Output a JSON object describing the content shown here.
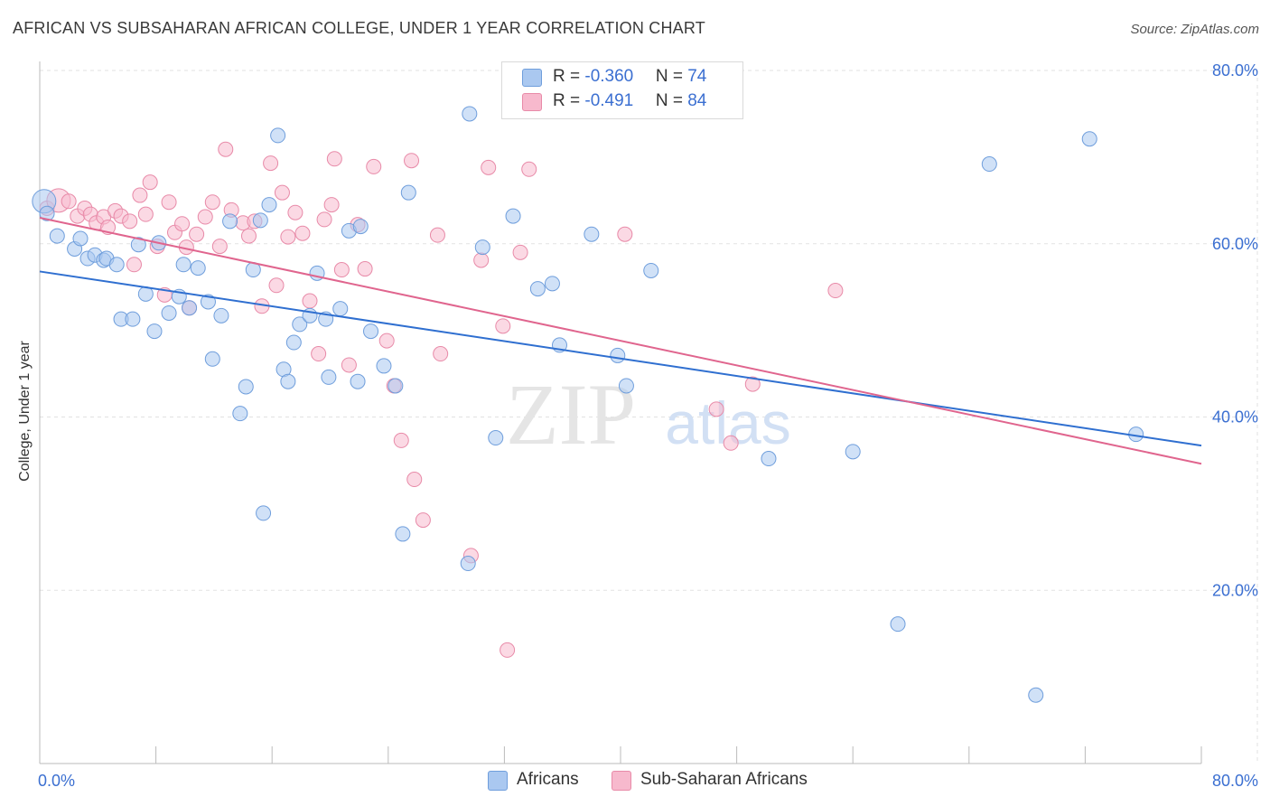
{
  "title": "AFRICAN VS SUBSAHARAN AFRICAN COLLEGE, UNDER 1 YEAR CORRELATION CHART",
  "source": "Source: ZipAtlas.com",
  "watermark": "ZIPatlas",
  "colors": {
    "africans_fill": "#aac8f0",
    "africans_stroke": "#6f9edc",
    "africans_line": "#2f6fd0",
    "subsaharan_fill": "#f7b9cd",
    "subsaharan_stroke": "#e88aa8",
    "subsaharan_line": "#e0658e",
    "value_text": "#3b6fd1",
    "grid": "#e2e2e2"
  },
  "legend": {
    "row1": {
      "r_label": "R = ",
      "r_value": "-0.360",
      "n_label": "N = ",
      "n_value": "74"
    },
    "row2": {
      "r_label": "R = ",
      "r_value": "-0.491",
      "n_label": "N = ",
      "n_value": "84"
    }
  },
  "chart_data": {
    "type": "scatter",
    "title": "AFRICAN VS SUBSAHARAN AFRICAN COLLEGE, UNDER 1 YEAR CORRELATION CHART",
    "xlabel": "",
    "ylabel": "College, Under 1 year",
    "xlim": [
      0,
      80
    ],
    "ylim": [
      0,
      80
    ],
    "x_tick_labels": [
      "0.0%",
      "80.0%"
    ],
    "y_tick_labels": [
      "20.0%",
      "40.0%",
      "60.0%",
      "80.0%"
    ],
    "y_ticks": [
      20,
      40,
      60,
      80
    ],
    "grid": true,
    "legend_position": "top-center",
    "series": [
      {
        "name": "Africans",
        "r": -0.36,
        "n": 74,
        "trend": {
          "x": [
            0,
            80
          ],
          "y": [
            56.8,
            36.7
          ]
        },
        "points": [
          [
            0.3,
            64.9
          ],
          [
            0.5,
            63.5
          ],
          [
            1.2,
            60.9
          ],
          [
            2.4,
            59.4
          ],
          [
            2.8,
            60.6
          ],
          [
            3.3,
            58.3
          ],
          [
            3.8,
            58.7
          ],
          [
            4.4,
            58.1
          ],
          [
            4.6,
            58.3
          ],
          [
            5.3,
            57.6
          ],
          [
            5.6,
            51.3
          ],
          [
            6.4,
            51.3
          ],
          [
            6.8,
            59.9
          ],
          [
            7.3,
            54.2
          ],
          [
            7.9,
            49.9
          ],
          [
            8.2,
            60.1
          ],
          [
            8.9,
            52
          ],
          [
            9.6,
            53.9
          ],
          [
            9.9,
            57.6
          ],
          [
            10.3,
            52.6
          ],
          [
            10.9,
            57.2
          ],
          [
            11.6,
            53.3
          ],
          [
            11.9,
            46.7
          ],
          [
            12.5,
            51.7
          ],
          [
            13.1,
            62.6
          ],
          [
            13.8,
            40.4
          ],
          [
            14.2,
            43.5
          ],
          [
            14.7,
            57
          ],
          [
            15.2,
            62.7
          ],
          [
            15.4,
            28.9
          ],
          [
            15.8,
            64.5
          ],
          [
            16.4,
            72.5
          ],
          [
            16.8,
            45.5
          ],
          [
            17.1,
            44.1
          ],
          [
            17.5,
            48.6
          ],
          [
            17.9,
            50.7
          ],
          [
            18.6,
            51.7
          ],
          [
            19.1,
            56.6
          ],
          [
            19.7,
            51.3
          ],
          [
            19.9,
            44.6
          ],
          [
            20.7,
            52.5
          ],
          [
            21.3,
            61.5
          ],
          [
            21.9,
            44.1
          ],
          [
            22.1,
            62
          ],
          [
            22.8,
            49.9
          ],
          [
            23.7,
            45.9
          ],
          [
            24.5,
            43.6
          ],
          [
            25,
            26.5
          ],
          [
            25.4,
            65.9
          ],
          [
            29.5,
            23.1
          ],
          [
            29.6,
            75
          ],
          [
            30.5,
            59.6
          ],
          [
            31.4,
            37.6
          ],
          [
            32.6,
            63.2
          ],
          [
            34.3,
            54.8
          ],
          [
            35.3,
            55.4
          ],
          [
            35.8,
            48.3
          ],
          [
            38,
            61.1
          ],
          [
            39.8,
            47.1
          ],
          [
            40.4,
            43.6
          ],
          [
            42.1,
            56.9
          ],
          [
            50.2,
            35.2
          ],
          [
            56,
            36
          ],
          [
            59.1,
            16.1
          ],
          [
            65.4,
            69.2
          ],
          [
            68.6,
            7.9
          ],
          [
            72.3,
            72.1
          ],
          [
            75.5,
            38
          ]
        ]
      },
      {
        "name": "Sub-Saharan Africans",
        "r": -0.491,
        "n": 84,
        "trend": {
          "x": [
            0,
            80
          ],
          "y": [
            63,
            34.6
          ]
        },
        "points": [
          [
            0.5,
            64.1
          ],
          [
            1.3,
            65
          ],
          [
            2,
            64.9
          ],
          [
            2.6,
            63.2
          ],
          [
            3.1,
            64.1
          ],
          [
            3.5,
            63.4
          ],
          [
            3.9,
            62.4
          ],
          [
            4.4,
            63.1
          ],
          [
            4.7,
            61.9
          ],
          [
            5.2,
            63.8
          ],
          [
            5.6,
            63.2
          ],
          [
            6.2,
            62.6
          ],
          [
            6.5,
            57.6
          ],
          [
            6.9,
            65.6
          ],
          [
            7.3,
            63.4
          ],
          [
            7.6,
            67.1
          ],
          [
            8.1,
            59.7
          ],
          [
            8.6,
            54.1
          ],
          [
            8.9,
            64.8
          ],
          [
            9.3,
            61.3
          ],
          [
            9.8,
            62.3
          ],
          [
            10.1,
            59.6
          ],
          [
            10.3,
            52.6
          ],
          [
            10.8,
            61.1
          ],
          [
            11.4,
            63.1
          ],
          [
            11.9,
            64.8
          ],
          [
            12.4,
            59.7
          ],
          [
            12.8,
            70.9
          ],
          [
            13.2,
            63.9
          ],
          [
            14,
            62.4
          ],
          [
            14.4,
            60.9
          ],
          [
            14.8,
            62.6
          ],
          [
            15.3,
            52.8
          ],
          [
            15.9,
            69.3
          ],
          [
            16.3,
            55.2
          ],
          [
            16.7,
            65.9
          ],
          [
            17.1,
            60.8
          ],
          [
            17.6,
            63.6
          ],
          [
            18.1,
            61.2
          ],
          [
            18.6,
            53.4
          ],
          [
            19.2,
            47.3
          ],
          [
            19.6,
            62.8
          ],
          [
            20.1,
            64.5
          ],
          [
            20.3,
            69.8
          ],
          [
            20.8,
            57
          ],
          [
            21.3,
            46
          ],
          [
            21.9,
            62.2
          ],
          [
            22.4,
            57.1
          ],
          [
            23,
            68.9
          ],
          [
            23.9,
            48.8
          ],
          [
            24.4,
            43.6
          ],
          [
            24.9,
            37.3
          ],
          [
            25.6,
            69.6
          ],
          [
            25.8,
            32.8
          ],
          [
            26.4,
            28.1
          ],
          [
            27.4,
            61
          ],
          [
            27.6,
            47.3
          ],
          [
            29.7,
            24
          ],
          [
            30.4,
            58.1
          ],
          [
            30.9,
            68.8
          ],
          [
            31.9,
            50.5
          ],
          [
            32.2,
            13.1
          ],
          [
            33.1,
            59
          ],
          [
            33.7,
            68.6
          ],
          [
            40.3,
            61.1
          ],
          [
            46.6,
            40.9
          ],
          [
            47.6,
            37
          ],
          [
            49.1,
            43.8
          ],
          [
            54.8,
            54.6
          ]
        ]
      }
    ]
  },
  "bottom_legend": {
    "item1": "Africans",
    "item2": "Sub-Saharan Africans"
  }
}
